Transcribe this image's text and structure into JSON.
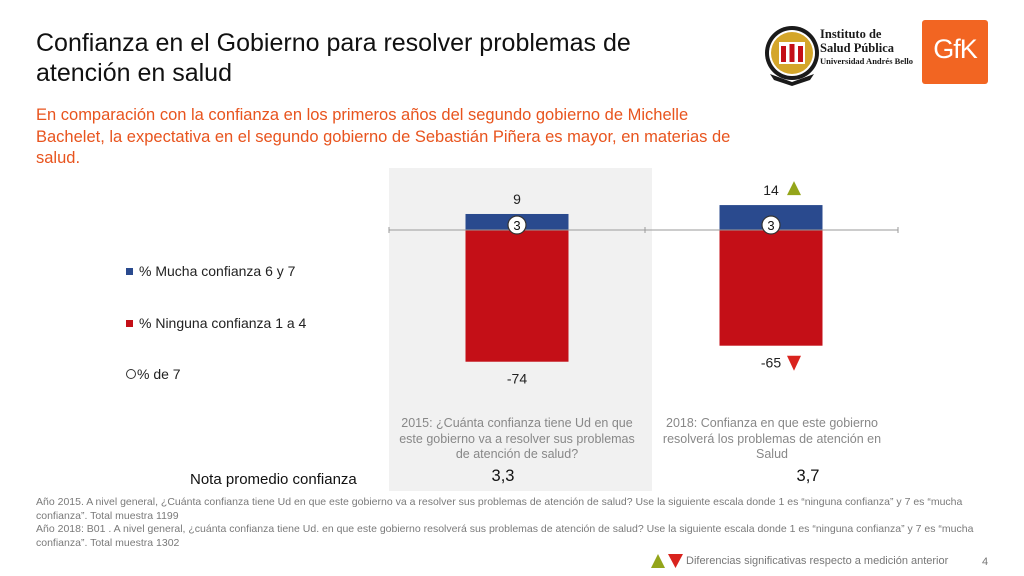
{
  "header": {
    "title": "Confianza en el Gobierno para resolver problemas de atención en  salud",
    "subtitle": "En comparación con la confianza en los primeros años del segundo gobierno de Michelle Bachelet, la expectativa en el segundo gobierno de Sebastián Piñera es mayor, en materias de salud."
  },
  "logos": {
    "isp_line1": "Instituto de",
    "isp_line2": "Salud Pública",
    "isp_line3": "Universidad Andrés Bello",
    "gfk": "GfK"
  },
  "legend": {
    "mucha": "% Mucha confianza 6 y 7",
    "ninguna": "% Ninguna confianza 1 a 4",
    "de7": "% de 7"
  },
  "colors": {
    "mucha": "#2a4a8e",
    "ninguna": "#c40f17",
    "up": "#94a51a",
    "down": "#d9231e",
    "accent": "#e8541e"
  },
  "chart_data": {
    "type": "bar",
    "categories": [
      "2015",
      "2018"
    ],
    "series": [
      {
        "name": "% Mucha confianza 6 y 7",
        "values": [
          9,
          14
        ]
      },
      {
        "name": "% Ninguna confianza 1 a 4",
        "values": [
          -74,
          -65
        ]
      },
      {
        "name": "% de 7",
        "values": [
          3,
          3
        ]
      }
    ],
    "value_labels": {
      "mucha": [
        "9",
        "14"
      ],
      "ninguna": [
        "-74",
        "-65"
      ],
      "de7": [
        "3",
        "3"
      ]
    },
    "significance": {
      "mucha": [
        null,
        "up"
      ],
      "ninguna": [
        null,
        "down"
      ]
    },
    "legend_position": "left"
  },
  "questions": {
    "q2015": "2015: ¿Cuánta confianza tiene Ud en que este gobierno va a resolver sus  problemas de atención de salud?",
    "q2018": "2018: Confianza en que este gobierno resolverá los problemas de atención en Salud"
  },
  "nota": {
    "label": "Nota promedio confianza",
    "v2015": "3,3",
    "v2018": "3,7"
  },
  "footnote": {
    "line1": "Año 2015. A nivel general, ¿Cuánta confianza tiene Ud en que este gobierno va a resolver sus  problemas de atención de salud? Use la siguiente escala donde 1 es “ninguna confianza” y 7 es “mucha confianza”. Total muestra 1199",
    "line2": "Año 2018: B01 .  A nivel general, ¿cuánta confianza tiene Ud. en que este gobierno resolverá sus problemas de atención de salud? Use la siguiente escala donde 1 es “ninguna confianza” y 7 es “mucha confianza”. Total muestra 1302"
  },
  "significance_note": "Diferencias significativas respecto a medición anterior",
  "page_number": "4"
}
